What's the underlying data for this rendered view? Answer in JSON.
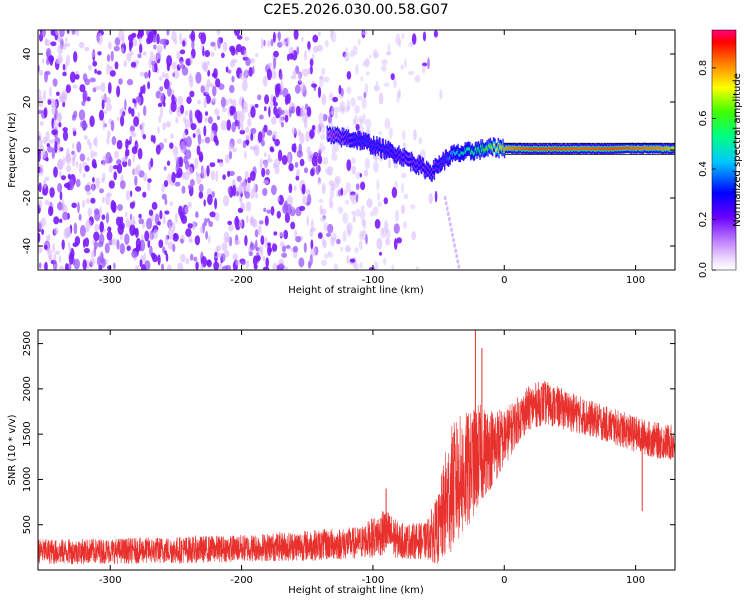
{
  "title": "C2E5.2026.030.00.58.G07",
  "colorbar": {
    "label": "Normalized spectral amplitude",
    "ticks": [
      "0.0",
      "0.2",
      "0.4",
      "0.6",
      "0.8"
    ],
    "range": [
      0,
      0.95
    ]
  },
  "chart_data": [
    {
      "type": "heatmap",
      "title": "C2E5.2026.030.00.58.G07",
      "xlabel": "Height of straight line (km)",
      "ylabel": "Frequency (Hz)",
      "xlim": [
        -355,
        130
      ],
      "ylim": [
        -50,
        50
      ],
      "xticks": [
        -300,
        -200,
        -100,
        0,
        100
      ],
      "xtick_labels": [
        "-300",
        "-200",
        "-100",
        "0",
        "100"
      ],
      "yticks": [
        -40,
        -20,
        0,
        20,
        40
      ],
      "ytick_labels": [
        "-40",
        "-20",
        "0",
        "20",
        "40"
      ],
      "colorbar_label": "Normalized spectral amplitude",
      "colormap": "rainbow (violet low to red high)",
      "background_noise_extent_km": [
        -355,
        -55
      ],
      "dominant_signal_track": {
        "x": [
          -135,
          -120,
          -110,
          -100,
          -90,
          -80,
          -70,
          -60,
          -55,
          -50,
          -45,
          -40,
          -30,
          -20,
          -10,
          0,
          20,
          40,
          60,
          80,
          100,
          120,
          130
        ],
        "frequency_hz": [
          6,
          5,
          4,
          2,
          0,
          -2,
          -5,
          -8,
          -9,
          -6,
          -4,
          -2,
          -1,
          0,
          1,
          0.8,
          0.5,
          0.5,
          0.5,
          0.5,
          0.8,
          0.6,
          0.5
        ],
        "amplitude": [
          0.2,
          0.3,
          0.35,
          0.35,
          0.35,
          0.3,
          0.3,
          0.3,
          0.3,
          0.35,
          0.35,
          0.45,
          0.55,
          0.6,
          0.7,
          0.85,
          0.9,
          0.9,
          0.88,
          0.9,
          0.88,
          0.85,
          0.8
        ]
      }
    },
    {
      "type": "line",
      "xlabel": "Height of straight line (km)",
      "ylabel": "SNR (10 * v/v)",
      "xlim": [
        -355,
        130
      ],
      "ylim": [
        0,
        2650
      ],
      "xticks": [
        -300,
        -200,
        -100,
        0,
        100
      ],
      "xtick_labels": [
        "-300",
        "-200",
        "-100",
        "0",
        "100"
      ],
      "yticks": [
        500,
        1000,
        1500,
        2000,
        2500
      ],
      "ytick_labels": [
        "500",
        "1000",
        "1500",
        "2000",
        "2500"
      ],
      "color": "#e8302c",
      "series": [
        {
          "name": "SNR",
          "x": [
            -355,
            -340,
            -300,
            -250,
            -200,
            -150,
            -110,
            -90,
            -80,
            -60,
            -50,
            -45,
            -40,
            -35,
            -30,
            -25,
            -20,
            -15,
            -10,
            -5,
            0,
            10,
            20,
            30,
            40,
            50,
            60,
            70,
            80,
            90,
            100,
            110,
            120,
            130
          ],
          "mean": [
            210,
            200,
            210,
            220,
            240,
            270,
            300,
            420,
            320,
            320,
            450,
            700,
            900,
            1000,
            1050,
            1150,
            1250,
            1300,
            1350,
            1400,
            1450,
            1650,
            1800,
            1850,
            1800,
            1750,
            1700,
            1650,
            1600,
            1550,
            1500,
            1450,
            1420,
            1400
          ],
          "spread": [
            140,
            140,
            140,
            150,
            150,
            170,
            180,
            260,
            200,
            200,
            400,
            600,
            700,
            700,
            700,
            600,
            600,
            500,
            450,
            400,
            320,
            260,
            250,
            250,
            230,
            220,
            210,
            200,
            200,
            200,
            200,
            200,
            200,
            200
          ]
        }
      ],
      "spikes": [
        {
          "x": -90,
          "y": 900
        },
        {
          "x": -22,
          "y": 2700
        },
        {
          "x": -17,
          "y": 2450
        },
        {
          "x": 105,
          "y": 650
        }
      ]
    }
  ]
}
